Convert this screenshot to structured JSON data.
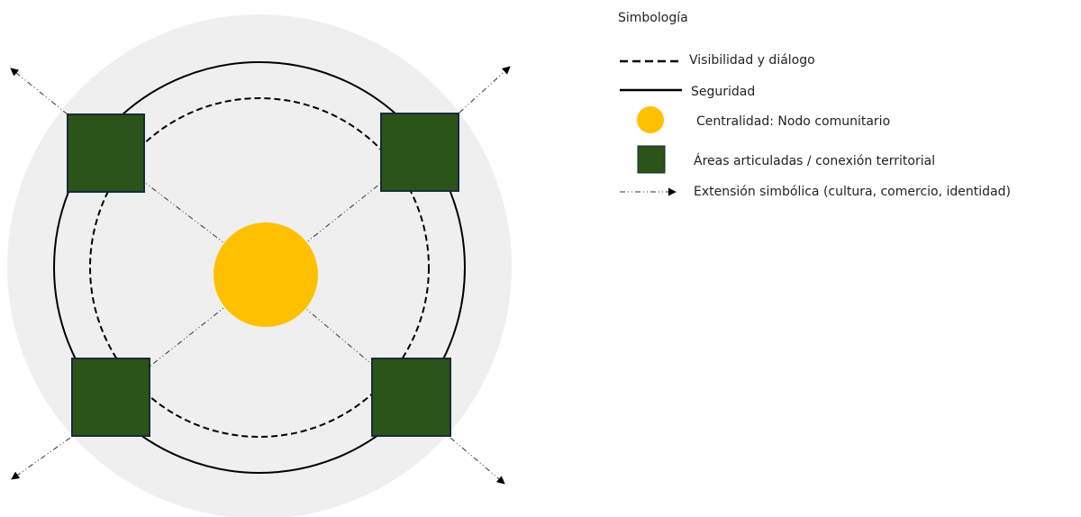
{
  "legend": {
    "title": "Simbología",
    "items": [
      {
        "label": "Visibilidad y diálogo"
      },
      {
        "label": "Seguridad"
      },
      {
        "label": "Centralidad: Nodo comunitario"
      },
      {
        "label": "Áreas articuladas / conexión territorial"
      },
      {
        "label": "Extensión simbólica (cultura, comercio, identidad)"
      }
    ]
  }
}
